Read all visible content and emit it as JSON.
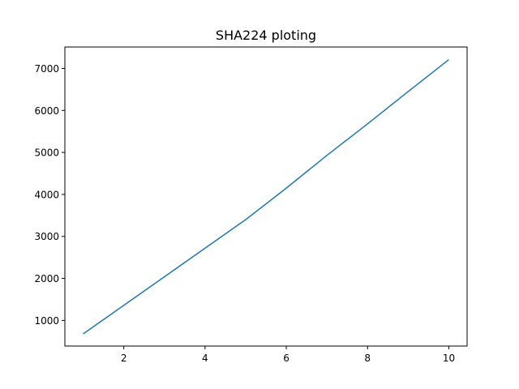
{
  "chart_data": {
    "type": "line",
    "title": "SHA224 ploting",
    "xlabel": "",
    "ylabel": "",
    "xlim": [
      0.55,
      10.45
    ],
    "ylim": [
      390,
      7510
    ],
    "xticks": [
      2,
      4,
      6,
      8,
      10
    ],
    "yticks": [
      1000,
      2000,
      3000,
      4000,
      5000,
      6000,
      7000
    ],
    "grid": false,
    "series": [
      {
        "color": "#1f77b4",
        "x": [
          1,
          2,
          3,
          4,
          5,
          6,
          7,
          8,
          9,
          10
        ],
        "y": [
          680,
          1360,
          2040,
          2720,
          3400,
          4150,
          4930,
          5680,
          6450,
          7210
        ]
      }
    ]
  }
}
